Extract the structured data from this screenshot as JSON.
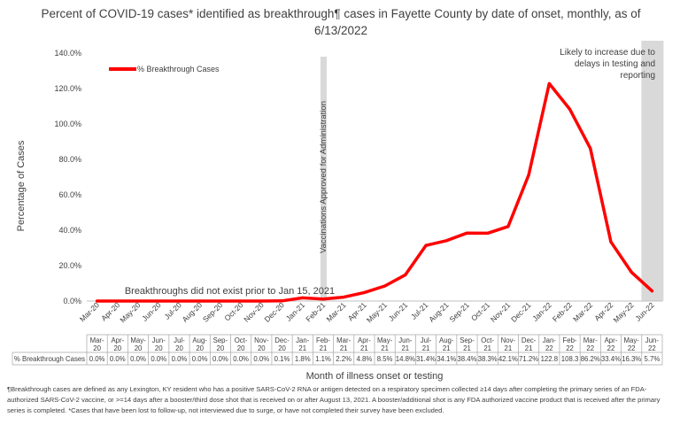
{
  "chart_data": {
    "type": "line",
    "title": "Percent of COVID-19 cases* identified as breakthrough¶ cases in Fayette County by date of onset, monthly, as of 6/13/2022",
    "xlabel": "Month of illness onset or testing",
    "ylabel": "Percentage of Cases",
    "ylim": [
      0,
      140
    ],
    "yticks": [
      "0.0%",
      "20.0%",
      "40.0%",
      "60.0%",
      "80.0%",
      "100.0%",
      "120.0%",
      "140.0%"
    ],
    "grid": false,
    "legend_position": "top-left",
    "categories": [
      "Mar-20",
      "Apr-20",
      "May-20",
      "Jun-20",
      "Jul-20",
      "Aug-20",
      "Sep-20",
      "Oct-20",
      "Nov-20",
      "Dec-20",
      "Jan-21",
      "Feb-21",
      "Mar-21",
      "Apr-21",
      "May-21",
      "Jun-21",
      "Jul-21",
      "Aug-21",
      "Sep-21",
      "Oct-21",
      "Nov-21",
      "Dec-21",
      "Jan-22",
      "Feb-22",
      "Mar-22",
      "Apr-22",
      "May-22",
      "Jun-22"
    ],
    "table_categories": [
      [
        "Mar-",
        "20"
      ],
      [
        "Apr-",
        "20"
      ],
      [
        "May-",
        "20"
      ],
      [
        "Jun-",
        "20"
      ],
      [
        "Jul-",
        "20"
      ],
      [
        "Aug-",
        "20"
      ],
      [
        "Sep-",
        "20"
      ],
      [
        "Oct-",
        "20"
      ],
      [
        "Nov-",
        "20"
      ],
      [
        "Dec-",
        "20"
      ],
      [
        "Jan-",
        "21"
      ],
      [
        "Feb-",
        "21"
      ],
      [
        "Mar-",
        "21"
      ],
      [
        "Apr-",
        "21"
      ],
      [
        "May-",
        "21"
      ],
      [
        "Jun-",
        "21"
      ],
      [
        "Jul-",
        "21"
      ],
      [
        "Aug-",
        "21"
      ],
      [
        "Sep-",
        "21"
      ],
      [
        "Oct-",
        "21"
      ],
      [
        "Nov-",
        "21"
      ],
      [
        "Dec-",
        "21"
      ],
      [
        "Jan-",
        "22"
      ],
      [
        "Feb-",
        "22"
      ],
      [
        "Mar-",
        "22"
      ],
      [
        "Apr-",
        "22"
      ],
      [
        "May-",
        "22"
      ],
      [
        "Jun-",
        "22"
      ]
    ],
    "series": [
      {
        "name": "% Breakthrough Cases",
        "color": "#ff0000",
        "values": [
          0.0,
          0.0,
          0.0,
          0.0,
          0.0,
          0.0,
          0.0,
          0.0,
          0.0,
          0.1,
          1.8,
          1.1,
          2.2,
          4.8,
          8.5,
          14.8,
          31.4,
          34.1,
          38.4,
          38.3,
          42.1,
          71.2,
          122.8,
          108.3,
          86.2,
          33.4,
          16.3,
          5.7
        ],
        "labels": [
          "0.0%",
          "0.0%",
          "0.0%",
          "0.0%",
          "0.0%",
          "0.0%",
          "0.0%",
          "0.0%",
          "0.0%",
          "0.1%",
          "1.8%",
          "1.1%",
          "2.2%",
          "4.8%",
          "8.5%",
          "14.8%",
          "31.4%",
          "34.1%",
          "38.4%",
          "38.3%",
          "42.1%",
          "71.2%",
          "122.8",
          "108.3",
          "86.2%",
          "33.4%",
          "16.3%",
          "5.7%"
        ]
      }
    ],
    "annotations": {
      "vaccination": "Vaccinations Approved for Administration",
      "pre_breakthrough": "Breakthroughs did not exist prior to Jan 15, 2021",
      "likely_increase": [
        "Likely to increase due to",
        "delays in testing and",
        "reporting"
      ]
    },
    "shade_color": "#d9d9d9"
  },
  "footnote": "¶Breakthrough cases are defined as any Lexington, KY resident who has a positive SARS-CoV-2 RNA or antigen detected on a respiratory specimen collected ≥14 days after completing the primary series of an FDA-authorized SARS-CoV-2 vaccine, or >=14 days after a booster/third dose shot that is received on or after August 13, 2021.  A booster/additional shot is any FDA authorized vaccine product that is received after the primary series is completed. *Cases that have been lost to follow-up, not interviewed due to surge, or have not completed their survey have been excluded."
}
